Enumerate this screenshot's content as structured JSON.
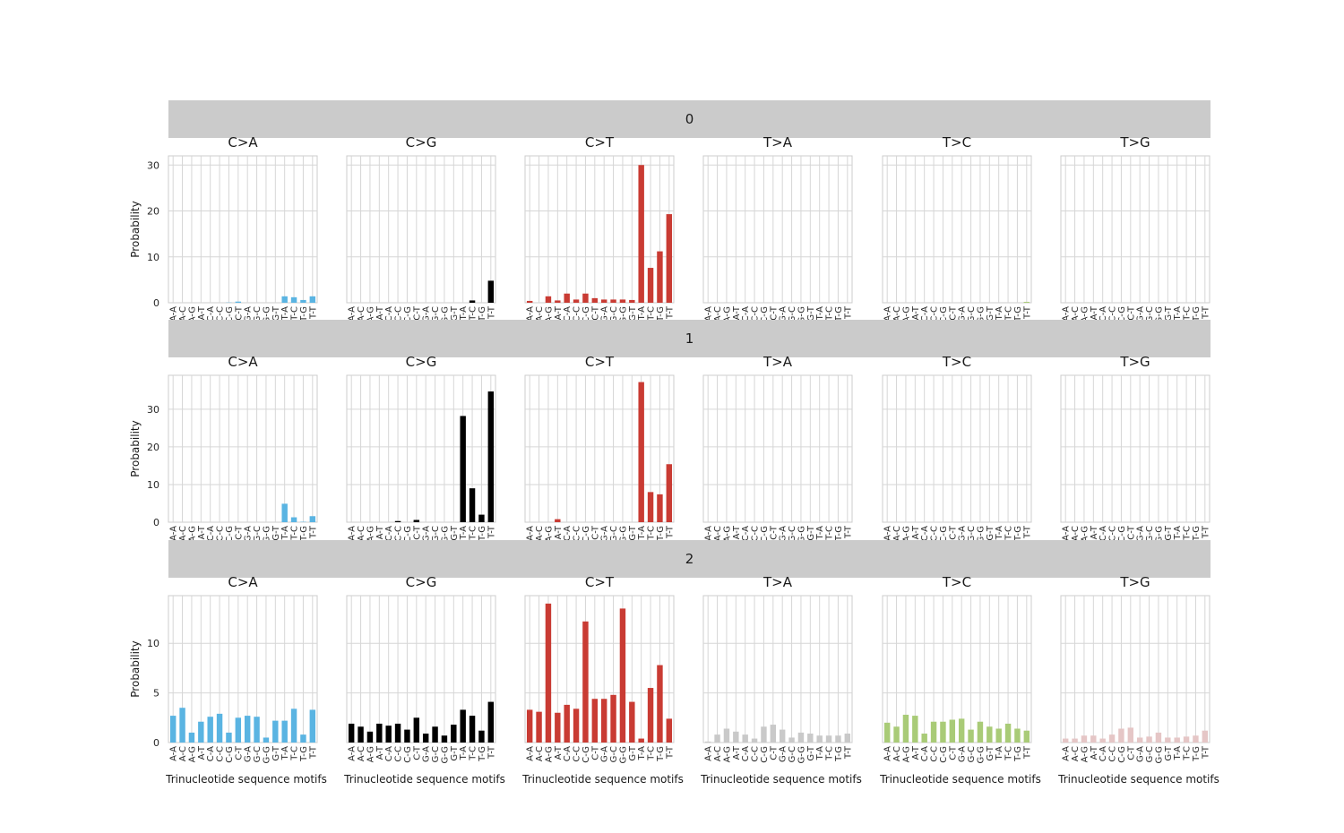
{
  "chart_data": {
    "type": "bar",
    "subtype": "faceted-trinucleotide-mutation-spectrum",
    "ylabel": "Probability",
    "xlabel": "Trinucleotide sequence motifs",
    "categories": [
      "A-A",
      "A-C",
      "A-G",
      "A-T",
      "C-A",
      "C-C",
      "C-G",
      "C-T",
      "G-A",
      "G-C",
      "G-G",
      "G-T",
      "T-A",
      "T-C",
      "T-G",
      "T-T"
    ],
    "substitutions": [
      "C>A",
      "C>G",
      "C>T",
      "T>A",
      "T>C",
      "T>G"
    ],
    "colors": {
      "C>A": "#5ab4e2",
      "C>G": "#000000",
      "C>T": "#c93b33",
      "T>A": "#c9c9c9",
      "T>C": "#a9cb77",
      "T>G": "#e5c6c6"
    },
    "rows": [
      {
        "label": "0",
        "ylim": [
          0,
          32
        ],
        "yticks": [
          0,
          10,
          20,
          30
        ],
        "series": [
          {
            "name": "C>A",
            "values": [
              0,
              0,
              0,
              0,
              0,
              0,
              0.05,
              0.25,
              0,
              0,
              0,
              0,
              1.4,
              1.2,
              0.6,
              1.4
            ]
          },
          {
            "name": "C>G",
            "values": [
              0,
              0,
              0,
              0,
              0,
              0,
              0,
              0,
              0,
              0,
              0,
              0,
              0,
              0.5,
              0,
              4.8
            ]
          },
          {
            "name": "C>T",
            "values": [
              0.4,
              0,
              1.4,
              0.5,
              2.0,
              0.7,
              2.0,
              1.0,
              0.7,
              0.7,
              0.7,
              0.6,
              30.0,
              7.6,
              11.2,
              19.3
            ]
          },
          {
            "name": "T>A",
            "values": [
              0,
              0,
              0.1,
              0,
              0,
              0,
              0,
              0,
              0,
              0,
              0,
              0,
              0,
              0,
              0,
              0
            ]
          },
          {
            "name": "T>C",
            "values": [
              0,
              0,
              0,
              0,
              0,
              0,
              0,
              0,
              0,
              0,
              0,
              0,
              0,
              0,
              0,
              0.2
            ]
          },
          {
            "name": "T>G",
            "values": [
              0,
              0,
              0,
              0,
              0,
              0,
              0,
              0,
              0,
              0,
              0,
              0,
              0,
              0,
              0,
              0
            ]
          }
        ]
      },
      {
        "label": "1",
        "ylim": [
          0,
          39
        ],
        "yticks": [
          0,
          10,
          20,
          30
        ],
        "series": [
          {
            "name": "C>A",
            "values": [
              0,
              0,
              0,
              0,
              0,
              0,
              0,
              0,
              0,
              0,
              0,
              0,
              4.9,
              1.3,
              0.1,
              1.6
            ]
          },
          {
            "name": "C>G",
            "values": [
              0,
              0,
              0,
              0,
              0,
              0.3,
              0,
              0.6,
              0,
              0,
              0,
              0,
              28.2,
              9.0,
              2.0,
              34.7
            ]
          },
          {
            "name": "C>T",
            "values": [
              0,
              0,
              0,
              0.8,
              0,
              0,
              0,
              0,
              0,
              0,
              0,
              0,
              37.2,
              8.0,
              7.4,
              15.4
            ]
          },
          {
            "name": "T>A",
            "values": [
              0,
              0,
              0,
              0,
              0,
              0,
              0,
              0,
              0,
              0,
              0,
              0,
              0,
              0,
              0,
              0
            ]
          },
          {
            "name": "T>C",
            "values": [
              0,
              0,
              0,
              0,
              0,
              0,
              0,
              0,
              0,
              0,
              0,
              0,
              0,
              0,
              0,
              0
            ]
          },
          {
            "name": "T>G",
            "values": [
              0,
              0,
              0,
              0,
              0,
              0,
              0,
              0,
              0,
              0,
              0,
              0,
              0,
              0,
              0,
              0
            ]
          }
        ]
      },
      {
        "label": "2",
        "ylim": [
          0,
          14.8
        ],
        "yticks": [
          0,
          5,
          10
        ],
        "series": [
          {
            "name": "C>A",
            "values": [
              2.7,
              3.5,
              1.0,
              2.1,
              2.6,
              2.9,
              1.0,
              2.5,
              2.7,
              2.6,
              0.5,
              2.2,
              2.2,
              3.4,
              0.8,
              3.3
            ]
          },
          {
            "name": "C>G",
            "values": [
              1.9,
              1.6,
              1.1,
              1.9,
              1.7,
              1.9,
              1.3,
              2.5,
              0.9,
              1.6,
              0.7,
              1.8,
              3.3,
              2.7,
              1.2,
              4.1
            ]
          },
          {
            "name": "C>T",
            "values": [
              3.3,
              3.1,
              14.0,
              3.0,
              3.8,
              3.4,
              12.2,
              4.4,
              4.4,
              4.8,
              13.5,
              4.1,
              0.4,
              5.5,
              7.8,
              2.4
            ]
          },
          {
            "name": "T>A",
            "values": [
              0.1,
              0.8,
              1.4,
              1.1,
              0.8,
              0.4,
              1.6,
              1.8,
              1.3,
              0.5,
              1.0,
              0.9,
              0.7,
              0.7,
              0.7,
              0.9
            ]
          },
          {
            "name": "T>C",
            "values": [
              2.0,
              1.6,
              2.8,
              2.7,
              0.9,
              2.1,
              2.1,
              2.3,
              2.4,
              1.3,
              2.1,
              1.6,
              1.4,
              1.9,
              1.4,
              1.2
            ]
          },
          {
            "name": "T>G",
            "values": [
              0.4,
              0.4,
              0.7,
              0.7,
              0.4,
              0.8,
              1.4,
              1.5,
              0.5,
              0.6,
              1.0,
              0.5,
              0.5,
              0.6,
              0.7,
              1.2
            ]
          }
        ]
      }
    ]
  }
}
